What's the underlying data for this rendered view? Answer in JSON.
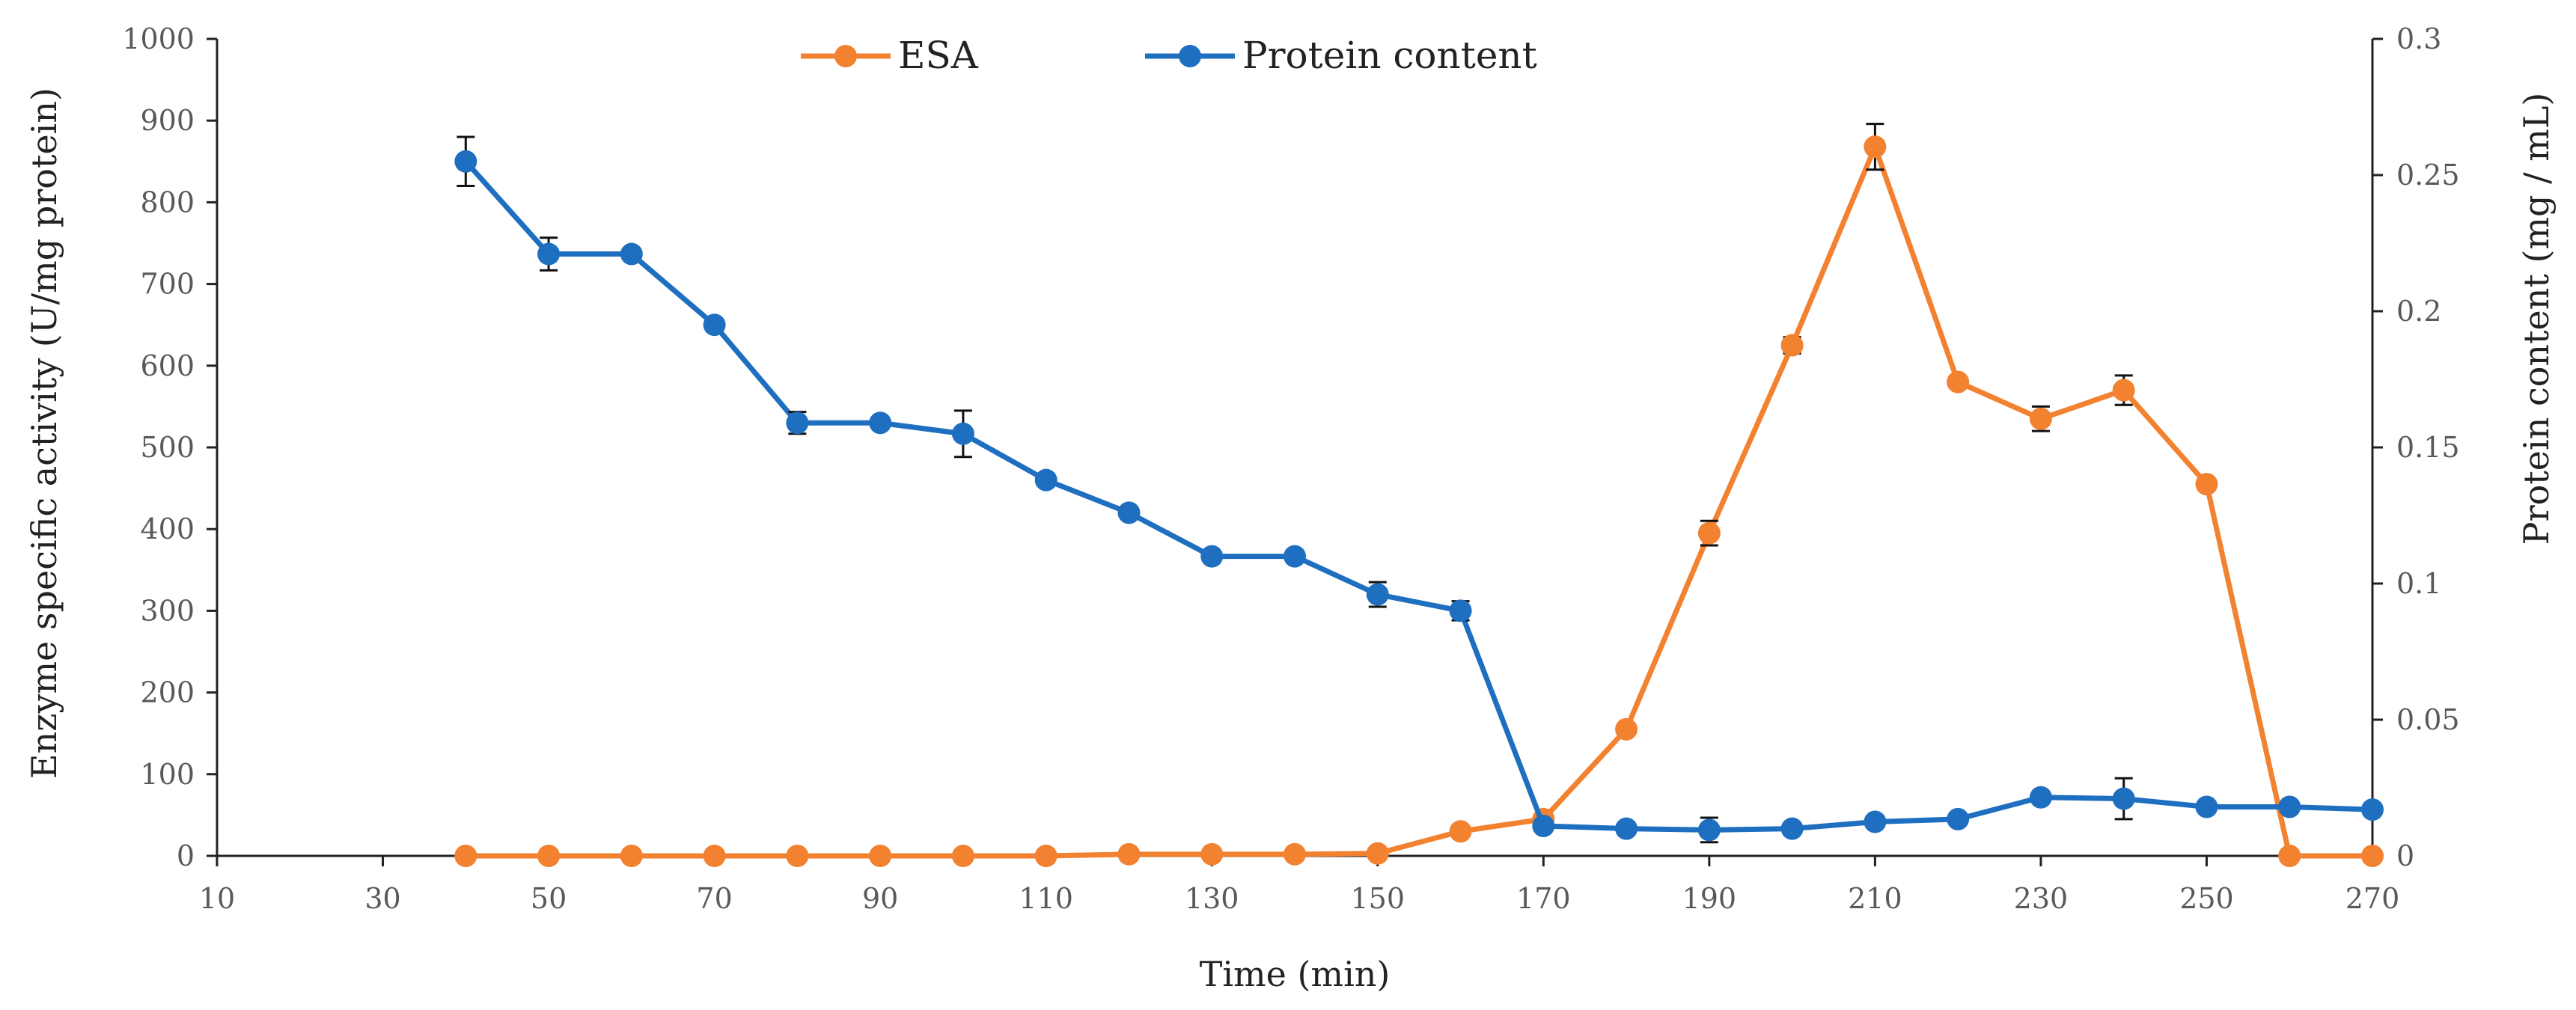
{
  "chart_data": {
    "type": "line",
    "title": "",
    "xlabel": "Time (min)",
    "ylabel_left": "Enzyme specific activity (U/mg protein)",
    "ylabel_right": "Protein content (mg / mL)",
    "xlim": [
      10,
      270
    ],
    "ylim_left": [
      0,
      1000
    ],
    "ylim_right": [
      0,
      0.3
    ],
    "x_ticks": [
      10,
      30,
      50,
      70,
      90,
      110,
      130,
      150,
      170,
      190,
      210,
      230,
      250,
      270
    ],
    "x_tick_labels": [
      "10",
      "30",
      "50",
      "70",
      "90",
      "110",
      "130",
      "150",
      "170",
      "190",
      "210",
      "230",
      "250",
      "270"
    ],
    "y_left_ticks": [
      0,
      100,
      200,
      300,
      400,
      500,
      600,
      700,
      800,
      900,
      1000
    ],
    "y_left_tick_labels": [
      "0",
      "100",
      "200",
      "300",
      "400",
      "500",
      "600",
      "700",
      "800",
      "900",
      "1000"
    ],
    "y_right_ticks": [
      0,
      0.05,
      0.1,
      0.15,
      0.2,
      0.25,
      0.3
    ],
    "y_right_tick_labels": [
      "0",
      "0.05",
      "0.1",
      "0.15",
      "0.2",
      "0.25",
      "0.3"
    ],
    "grid": false,
    "legend_position": "top-center",
    "series": [
      {
        "name": "ESA",
        "axis": "left",
        "color": "#F28130",
        "x": [
          40,
          50,
          60,
          70,
          80,
          90,
          100,
          110,
          120,
          130,
          140,
          150,
          160,
          170,
          180,
          190,
          200,
          210,
          220,
          230,
          240,
          250,
          260,
          270
        ],
        "values": [
          0,
          0,
          0,
          0,
          0,
          0,
          0,
          0,
          2,
          2,
          2,
          3,
          30,
          45,
          155,
          395,
          625,
          868,
          580,
          535,
          570,
          455,
          0,
          0
        ],
        "errors": [
          0,
          0,
          0,
          0,
          0,
          0,
          0,
          0,
          0,
          0,
          0,
          0,
          0,
          0,
          0,
          15,
          10,
          28,
          0,
          15,
          18,
          0,
          0,
          0
        ]
      },
      {
        "name": "Protein content",
        "axis": "right",
        "color": "#1F6FC0",
        "x": [
          40,
          50,
          60,
          70,
          80,
          90,
          100,
          110,
          120,
          130,
          140,
          150,
          160,
          170,
          180,
          190,
          200,
          210,
          220,
          230,
          240,
          250,
          260,
          270
        ],
        "values": [
          0.255,
          0.221,
          0.221,
          0.195,
          0.159,
          0.159,
          0.155,
          0.138,
          0.126,
          0.11,
          0.11,
          0.096,
          0.09,
          0.011,
          0.01,
          0.0095,
          0.01,
          0.0125,
          0.0135,
          0.0215,
          0.021,
          0.018,
          0.018,
          0.017
        ],
        "errors": [
          0.009,
          0.006,
          0,
          0,
          0.004,
          0,
          0.0085,
          0,
          0,
          0,
          0,
          0.0045,
          0.0035,
          0,
          0,
          0.0045,
          0,
          0,
          0,
          0,
          0.0075,
          0,
          0,
          0
        ]
      }
    ]
  }
}
